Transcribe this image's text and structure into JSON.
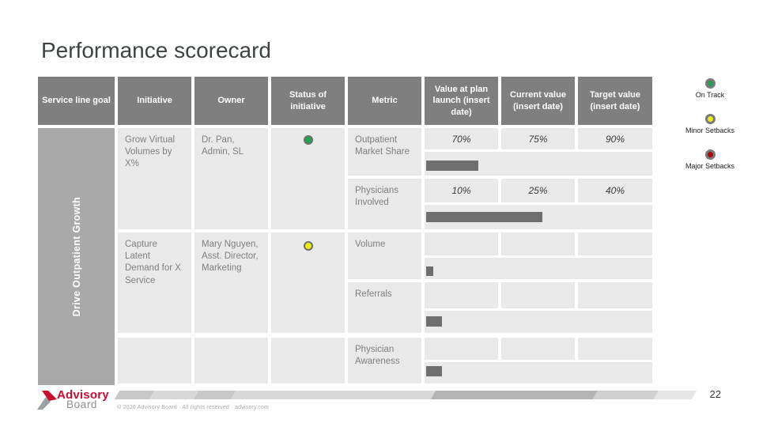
{
  "title": "Performance scorecard",
  "table": {
    "headers": [
      "Service line goal",
      "Initiative",
      "Owner",
      "Status of initiative",
      "Metric",
      "Value at plan launch (insert date)",
      "Current value (insert date)",
      "Target value (insert date)"
    ],
    "service_line_goal": "Drive Outpatient Growth",
    "initiatives": [
      {
        "initiative": "Grow Virtual Volumes by X%",
        "owner": "Dr. Pan, Admin, SL",
        "status": "On Track",
        "status_color": "#22a34f",
        "metrics": [
          {
            "metric": "Outpatient Market Share",
            "value_at_plan_launch": "70%",
            "current_value": "75%",
            "target_value": "90%",
            "progress_pct": 23
          },
          {
            "metric": "Physicians Involved",
            "value_at_plan_launch": "10%",
            "current_value": "25%",
            "target_value": "40%",
            "progress_pct": 51
          }
        ]
      },
      {
        "initiative": "Capture Latent Demand for X Service",
        "owner": "Mary Nguyen, Asst. Director, Marketing",
        "status": "Minor Setbacks",
        "status_color": "#eded12",
        "metrics": [
          {
            "metric": "Volume",
            "value_at_plan_launch": "",
            "current_value": "",
            "target_value": "",
            "progress_pct": 3
          },
          {
            "metric": "Referrals",
            "value_at_plan_launch": "",
            "current_value": "",
            "target_value": "",
            "progress_pct": 7
          },
          {
            "metric": "Physician Awareness",
            "value_at_plan_launch": "",
            "current_value": "",
            "target_value": "",
            "progress_pct": 7
          }
        ]
      }
    ]
  },
  "legend": [
    {
      "label": "On Track",
      "color": "#22a34f"
    },
    {
      "label": "Minor Setbacks",
      "color": "#eded12"
    },
    {
      "label": "Major Setbacks",
      "color": "#aa0c0c"
    }
  ],
  "footer": {
    "logo_line1": "Advisory",
    "logo_line2": "Board",
    "copyright": "© 2020 Advisory Board · All rights reserved · advisory.com",
    "page_number": "22"
  },
  "colors": {
    "header_bg": "#7f7f7f",
    "sidebar_bg": "#a9a9a9",
    "cell_bg": "#e9e9e9",
    "bar": "#6e6e6e",
    "title_text": "#3e4347",
    "body_text": "#7f7f7f"
  }
}
